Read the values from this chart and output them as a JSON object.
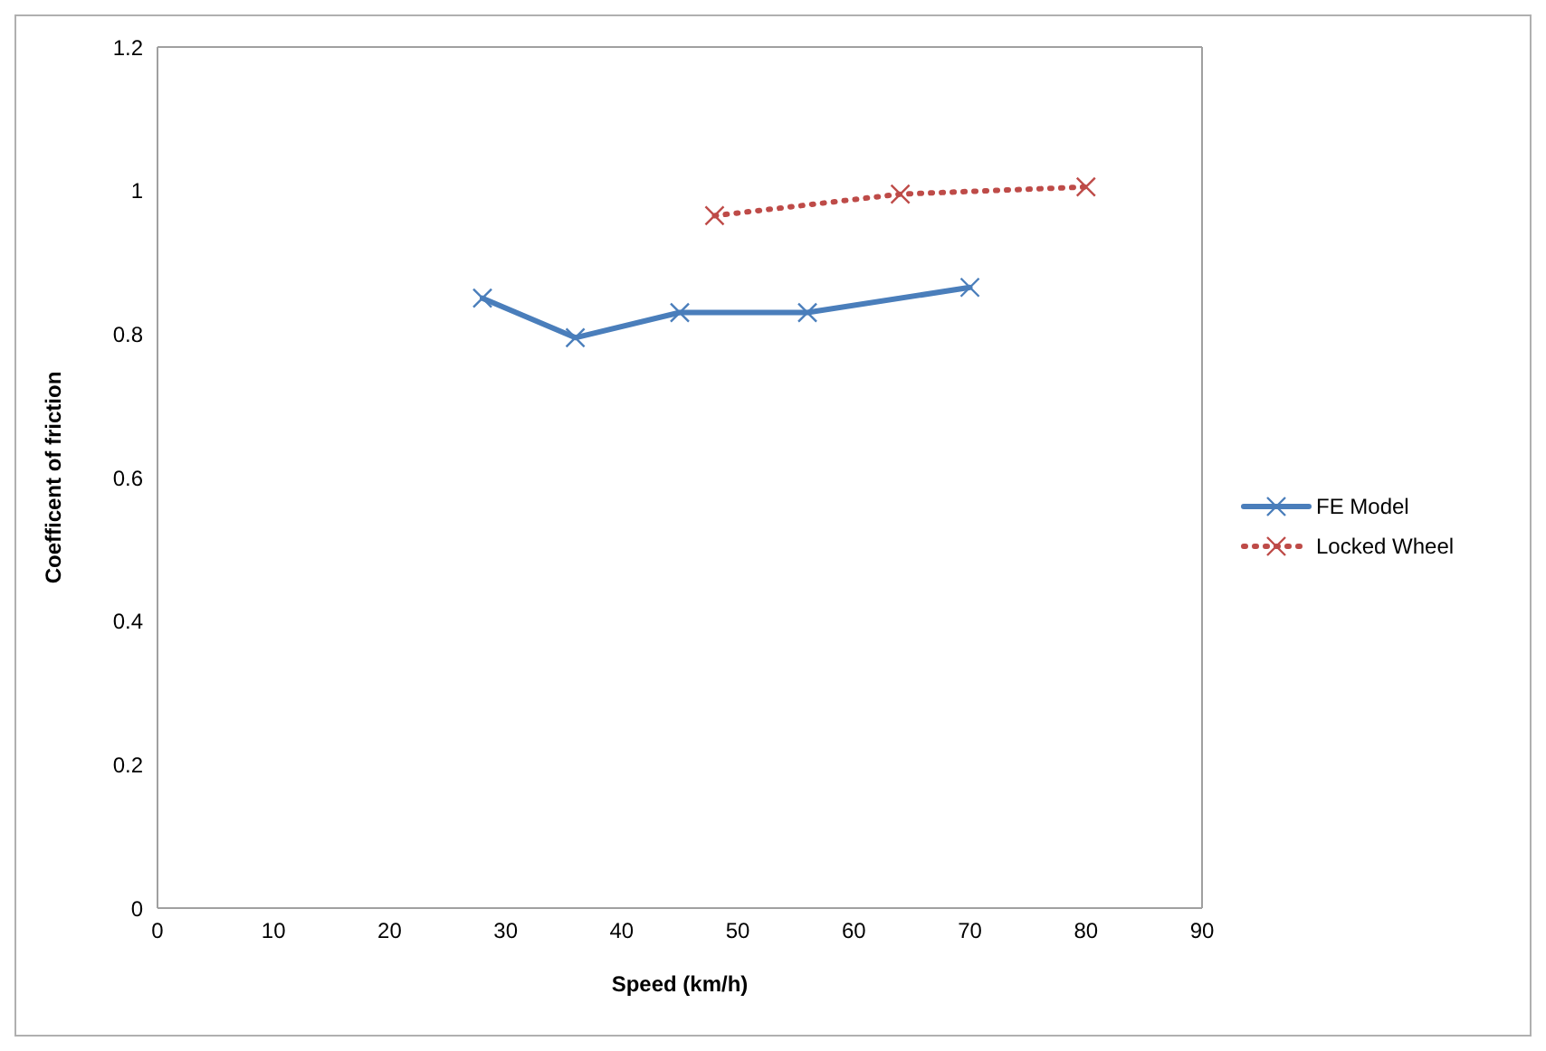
{
  "chart_data": {
    "type": "line",
    "xlabel": "Speed (km/h)",
    "ylabel": "Coefficent of friction",
    "xlim": [
      0,
      90
    ],
    "xticks": [
      0,
      10,
      20,
      30,
      40,
      50,
      60,
      70,
      80,
      90
    ],
    "ylim": [
      0,
      1.2
    ],
    "yticks": [
      0,
      0.2,
      0.4,
      0.6,
      0.8,
      1,
      1.2
    ],
    "legend": "right",
    "marker": "cross",
    "series": [
      {
        "name": "FE Model",
        "color": "#4a7ebb",
        "line_style": "solid",
        "x": [
          28,
          36,
          45,
          56,
          70
        ],
        "values": [
          0.85,
          0.795,
          0.83,
          0.83,
          0.865
        ]
      },
      {
        "name": "Locked Wheel",
        "color": "#be4b48",
        "line_style": "dotted",
        "x": [
          48,
          64,
          80
        ],
        "values": [
          0.965,
          0.995,
          1.005
        ]
      }
    ]
  }
}
